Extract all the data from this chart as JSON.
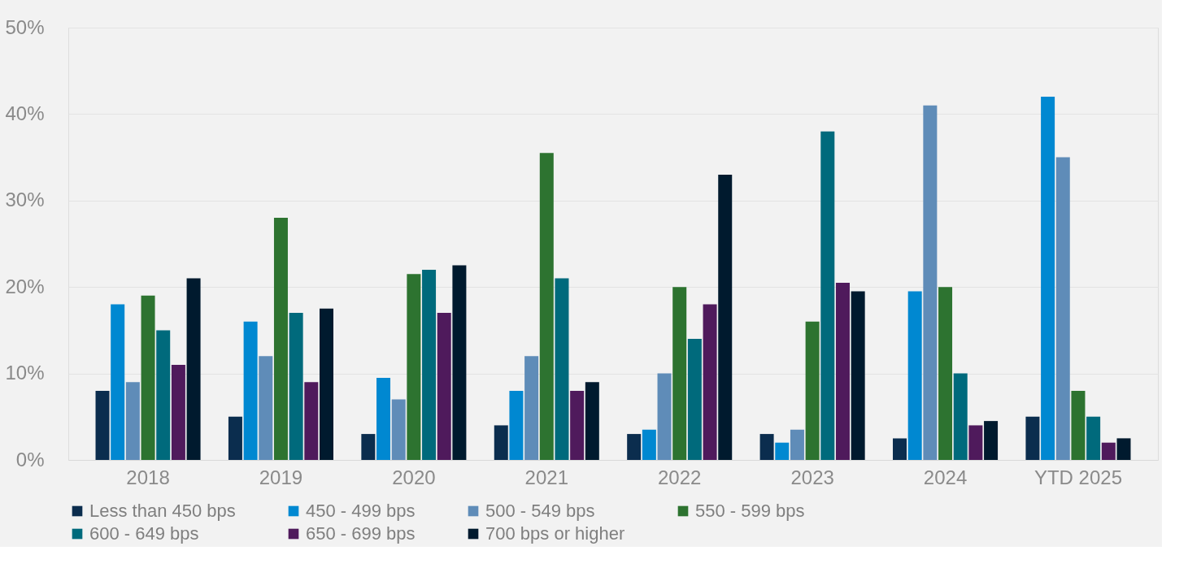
{
  "chart_data": {
    "type": "bar",
    "categories": [
      "2018",
      "2019",
      "2020",
      "2021",
      "2022",
      "2023",
      "2024",
      "YTD 2025"
    ],
    "series": [
      {
        "name": "Less than 450 bps",
        "color": "#0b2d4e",
        "values": [
          8,
          5,
          3,
          4,
          3,
          3,
          2.5,
          5
        ]
      },
      {
        "name": "450 - 499 bps",
        "color": "#0088d1",
        "values": [
          18,
          16,
          9.5,
          8,
          3.5,
          2,
          19.5,
          42
        ]
      },
      {
        "name": "500 - 549 bps",
        "color": "#5f8cb8",
        "values": [
          9,
          12,
          7,
          12,
          10,
          3.5,
          41,
          35
        ]
      },
      {
        "name": "550 - 599 bps",
        "color": "#2d7330",
        "values": [
          19,
          28,
          21.5,
          35.5,
          20,
          16,
          20,
          8
        ]
      },
      {
        "name": "600 - 649 bps",
        "color": "#006a7c",
        "values": [
          15,
          17,
          22,
          21,
          14,
          38,
          10,
          5
        ]
      },
      {
        "name": "650 - 699 bps",
        "color": "#4f1a5c",
        "values": [
          11,
          9,
          17,
          8,
          18,
          20.5,
          4,
          2
        ]
      },
      {
        "name": "700 bps or higher",
        "color": "#001a2e",
        "values": [
          21,
          17.5,
          22.5,
          9,
          33,
          19.5,
          4.5,
          2.5
        ]
      }
    ],
    "ylim": [
      0,
      50
    ],
    "yticks": [
      {
        "value": 0,
        "label": "0%"
      },
      {
        "value": 10,
        "label": "10%"
      },
      {
        "value": 20,
        "label": "20%"
      },
      {
        "value": 30,
        "label": "30%"
      },
      {
        "value": 40,
        "label": "40%"
      },
      {
        "value": 50,
        "label": "50%"
      }
    ],
    "grid": "y",
    "legend": "bottom"
  }
}
